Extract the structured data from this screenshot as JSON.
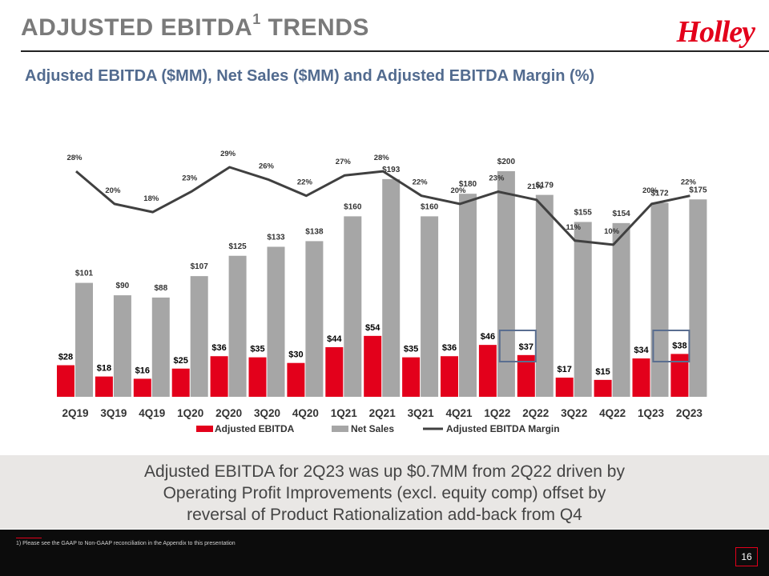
{
  "header": {
    "title": "ADJUSTED EBITDA",
    "title_sup": "1",
    "title_suffix": " TRENDS",
    "logo": "Holley"
  },
  "subtitle": "Adjusted EBITDA ($MM), Net Sales ($MM) and Adjusted EBITDA Margin (%)",
  "chart_data": {
    "type": "bar",
    "categories": [
      "2Q19",
      "3Q19",
      "4Q19",
      "1Q20",
      "2Q20",
      "3Q20",
      "4Q20",
      "1Q21",
      "2Q21",
      "3Q21",
      "4Q21",
      "1Q22",
      "2Q22",
      "3Q22",
      "4Q22",
      "1Q23",
      "2Q23"
    ],
    "series": [
      {
        "name": "Adjusted EBITDA",
        "type": "bar",
        "color": "#e3001b",
        "values": [
          28,
          18,
          16,
          25,
          36,
          35,
          30,
          44,
          54,
          35,
          36,
          46,
          37,
          17,
          15,
          34,
          38
        ],
        "labels": [
          "$28",
          "$18",
          "$16",
          "$25",
          "$36",
          "$35",
          "$30",
          "$44",
          "$54",
          "$35",
          "$36",
          "$46",
          "$37",
          "$17",
          "$15",
          "$34",
          "$38"
        ]
      },
      {
        "name": "Net Sales",
        "type": "bar",
        "color": "#a6a6a6",
        "values": [
          101,
          90,
          88,
          107,
          125,
          133,
          138,
          160,
          193,
          160,
          180,
          200,
          179,
          155,
          154,
          172,
          175
        ],
        "labels": [
          "$101",
          "$90",
          "$88",
          "$107",
          "$125",
          "$133",
          "$138",
          "$160",
          "$193",
          "$160",
          "$180",
          "$200",
          "$179",
          "$155",
          "$154",
          "$172",
          "$175"
        ]
      },
      {
        "name": "Adjusted EBITDA Margin",
        "type": "line",
        "color": "#404040",
        "values": [
          28,
          20,
          18,
          23,
          29,
          26,
          22,
          27,
          28,
          22,
          20,
          23,
          21,
          11,
          10,
          20,
          22
        ],
        "labels": [
          "28%",
          "20%",
          "18%",
          "23%",
          "29%",
          "26%",
          "22%",
          "27%",
          "28%",
          "22%",
          "20%",
          "23%",
          "21%",
          "11%",
          "10%",
          "20%",
          "22%"
        ]
      }
    ],
    "highlighted_categories": [
      "2Q22",
      "2Q23"
    ],
    "legend_placement": "bottom",
    "grid": false
  },
  "callout": {
    "lines": [
      "Adjusted EBITDA for 2Q23 was up $0.7MM from 2Q22 driven by",
      "Operating Profit Improvements (excl. equity comp) offset by",
      "reversal of Product Rationalization add-back from Q4"
    ]
  },
  "footnote": "1)    Please see the GAAP to Non-GAAP reconciliation in the Appendix to this presentation",
  "page_number": "16"
}
